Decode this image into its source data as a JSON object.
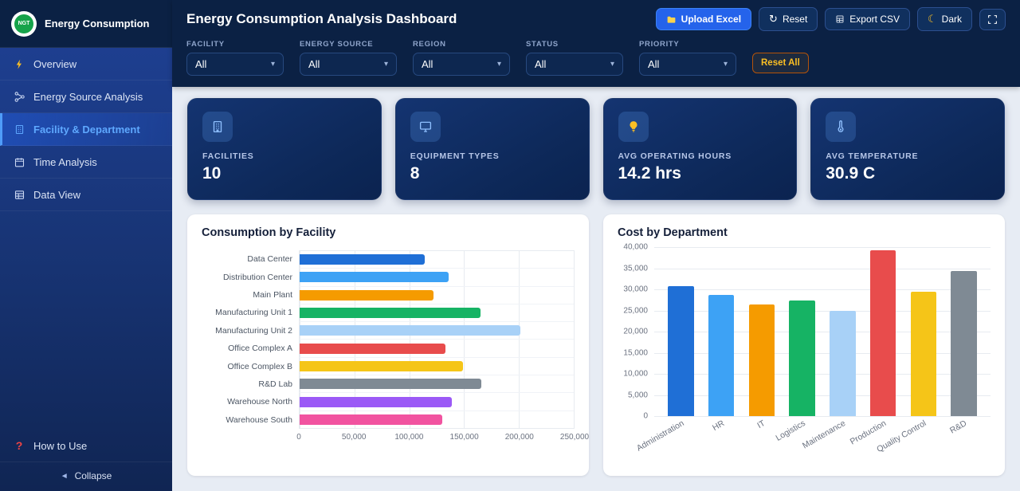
{
  "theme": {
    "accent": "#2563eb",
    "warning": "#f59e0b",
    "header_bg": "#0b2144"
  },
  "sidebar": {
    "logo_text": "NGT",
    "brand": "Energy Consumption",
    "items": [
      {
        "label": "Overview",
        "icon": "bolt-icon",
        "active": false
      },
      {
        "label": "Energy Source Analysis",
        "icon": "nodes-icon",
        "active": false
      },
      {
        "label": "Facility & Department",
        "icon": "building-icon",
        "active": true
      },
      {
        "label": "Time Analysis",
        "icon": "calendar-icon",
        "active": false
      },
      {
        "label": "Data View",
        "icon": "table-icon",
        "active": false
      }
    ],
    "help": "How to Use",
    "collapse": "Collapse"
  },
  "header": {
    "title": "Energy Consumption Analysis Dashboard",
    "upload_label": "Upload Excel",
    "reset_label": "Reset",
    "export_label": "Export CSV",
    "dark_label": "Dark"
  },
  "filters": {
    "fields": [
      {
        "label": "FACILITY",
        "value": "All"
      },
      {
        "label": "ENERGY SOURCE",
        "value": "All"
      },
      {
        "label": "REGION",
        "value": "All"
      },
      {
        "label": "STATUS",
        "value": "All"
      },
      {
        "label": "PRIORITY",
        "value": "All"
      }
    ],
    "reset_all_label": "Reset All"
  },
  "kpis": [
    {
      "label": "FACILITIES",
      "value": "10",
      "icon": "building-icon"
    },
    {
      "label": "EQUIPMENT TYPES",
      "value": "8",
      "icon": "monitor-icon"
    },
    {
      "label": "AVG OPERATING HOURS",
      "value": "14.2 hrs",
      "icon": "bulb-icon"
    },
    {
      "label": "AVG TEMPERATURE",
      "value": "30.9 C",
      "icon": "thermometer-icon"
    }
  ],
  "chart_data": [
    {
      "type": "bar",
      "orientation": "horizontal",
      "title": "Consumption by Facility",
      "categories": [
        "Data Center",
        "Distribution Center",
        "Main Plant",
        "Manufacturing Unit 1",
        "Manufacturing Unit 2",
        "Office Complex A",
        "Office Complex B",
        "R&D Lab",
        "Warehouse North",
        "Warehouse South"
      ],
      "values": [
        114000,
        136000,
        122000,
        165000,
        201000,
        133000,
        149000,
        166000,
        139000,
        130000
      ],
      "colors": [
        "#1f6fd6",
        "#3da2f5",
        "#f59b00",
        "#16b364",
        "#a8d1f7",
        "#e84c4c",
        "#f5c518",
        "#7f8a94",
        "#9b59f6",
        "#f153a0"
      ],
      "xlim": [
        0,
        250000
      ],
      "xticks": [
        "0",
        "50,000",
        "100,000",
        "150,000",
        "200,000",
        "250,000"
      ],
      "grid": true,
      "legend": "none"
    },
    {
      "type": "bar",
      "orientation": "vertical",
      "title": "Cost by Department",
      "categories": [
        "Administration",
        "HR",
        "IT",
        "Logistics",
        "Maintenance",
        "Production",
        "Quality Control",
        "R&D"
      ],
      "values": [
        30800,
        28600,
        26400,
        27300,
        24900,
        39200,
        29400,
        34300
      ],
      "colors": [
        "#1f6fd6",
        "#3da2f5",
        "#f59b00",
        "#16b364",
        "#a8d1f7",
        "#e84c4c",
        "#f5c518",
        "#7f8a94"
      ],
      "ylim": [
        0,
        40000
      ],
      "yticks": [
        "40,000",
        "35,000",
        "30,000",
        "25,000",
        "20,000",
        "15,000",
        "10,000",
        "5,000",
        "0"
      ],
      "grid": true,
      "legend": "none"
    }
  ]
}
